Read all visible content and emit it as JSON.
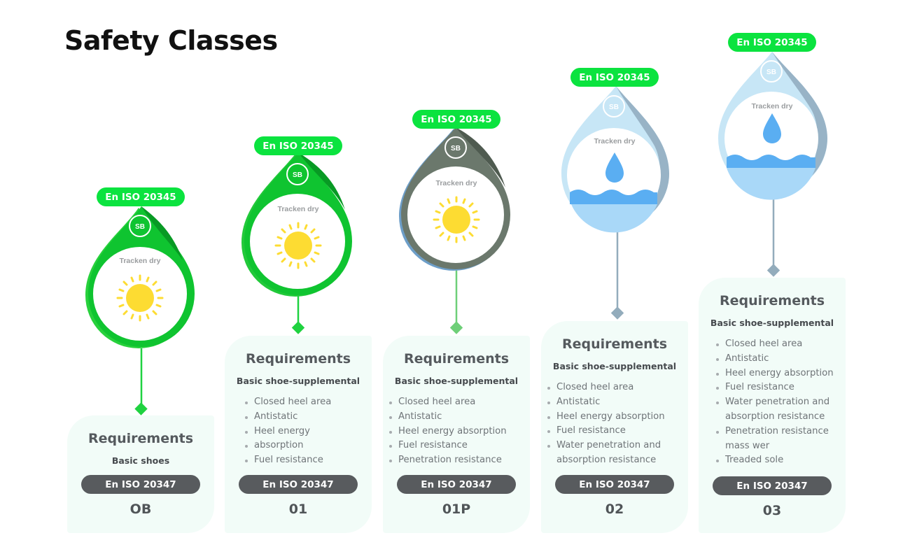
{
  "title": "Safety Classes",
  "colors": {
    "green": "#0be33f",
    "dark_pill": "#585b5e",
    "card_bg": "#f2fcf8",
    "sun": "#fddc32",
    "water": "#5aaef2"
  },
  "classes": [
    {
      "standard_label": "En ISO 20345",
      "badge": "SB",
      "condition": "Tracken dry",
      "requirements_heading": "Requirements",
      "requirements_sub": "Basic shoes",
      "requirements": [],
      "norm_label": "En ISO 20347",
      "code": "OB"
    },
    {
      "standard_label": "En ISO 20345",
      "badge": "SB",
      "condition": "Tracken dry",
      "requirements_heading": "Requirements",
      "requirements_sub": "Basic shoe-supplemental",
      "requirements": [
        "Closed heel area",
        "Antistatic",
        "Heel energy",
        "absorption",
        "Fuel resistance"
      ],
      "norm_label": "En ISO 20347",
      "code": "01"
    },
    {
      "standard_label": "En ISO 20345",
      "badge": "SB",
      "condition": "Tracken dry",
      "requirements_heading": "Requirements",
      "requirements_sub": "Basic shoe-supplemental",
      "requirements": [
        "Closed heel area",
        "Antistatic",
        "Heel energy absorption",
        "Fuel resistance",
        "Penetration resistance"
      ],
      "norm_label": "En ISO 20347",
      "code": "01P"
    },
    {
      "standard_label": "En ISO 20345",
      "badge": "SB",
      "condition": "Tracken dry",
      "requirements_heading": "Requirements",
      "requirements_sub": "Basic shoe-supplemental",
      "requirements": [
        "Closed heel area",
        "Antistatic",
        "Heel energy absorption",
        "Fuel resistance",
        "Water penetration and",
        "absorption resistance"
      ],
      "norm_label": "En ISO 20347",
      "code": "02"
    },
    {
      "standard_label": "En ISO 20345",
      "badge": "SB",
      "condition": "Tracken dry",
      "requirements_heading": "Requirements",
      "requirements_sub": "Basic shoe-supplemental",
      "requirements": [
        "Closed heel area",
        "Antistatic",
        "Heel energy absorption",
        "Fuel resistance",
        "Water penetration and",
        "absorption resistance",
        "Penetration resistance",
        "mass wer",
        "Treaded sole"
      ],
      "norm_label": "En ISO 20347",
      "code": "03"
    }
  ]
}
